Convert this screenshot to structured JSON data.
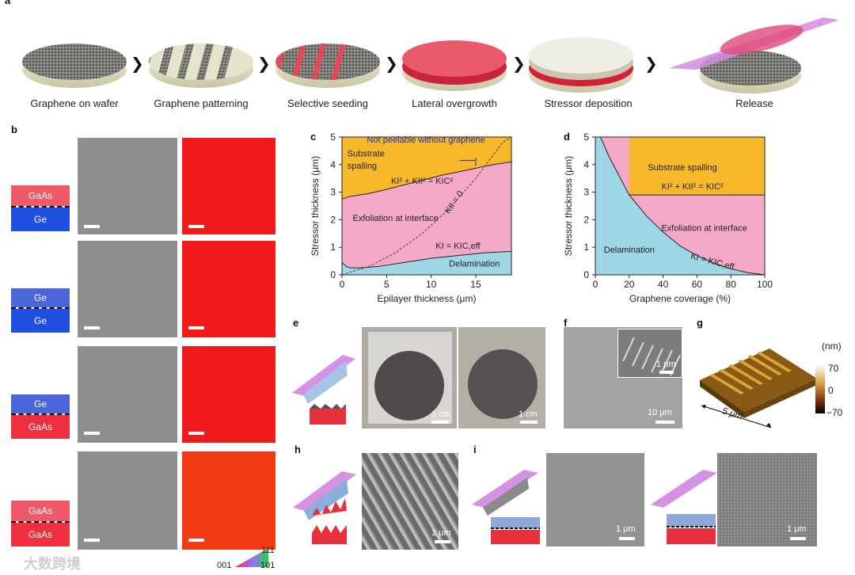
{
  "panel_a": {
    "label": "a",
    "steps": [
      "Graphene on wafer",
      "Graphene patterning",
      "Selective seeding",
      "Lateral overgrowth",
      "Stressor deposition",
      "Release"
    ],
    "arrow_glyph": "❯"
  },
  "panel_b": {
    "label": "b",
    "rows": [
      {
        "top": "GaAs",
        "bottom": "Ge",
        "top_color": "#ef4a5a",
        "bottom_color": "#1f4fe0"
      },
      {
        "top": "Ge",
        "bottom": "Ge",
        "top_color": "#4a66d8",
        "bottom_color": "#1f4fe0"
      },
      {
        "top": "Ge",
        "bottom": "GaAs",
        "top_color": "#4a66d8",
        "bottom_color": "#ef2f3f"
      },
      {
        "top": "GaAs",
        "bottom": "GaAs",
        "top_color": "#ef4a5a",
        "bottom_color": "#ef2f3f"
      }
    ],
    "colorbar": {
      "left": "001",
      "right": "101",
      "top": "111"
    }
  },
  "chart_data": [
    {
      "id": "c",
      "type": "area",
      "title": "",
      "xlabel": "Epilayer thickness (μm)",
      "ylabel": "Stressor thickness (μm)",
      "xlim": [
        0,
        19
      ],
      "ylim": [
        0,
        5
      ],
      "xticks": [
        0,
        5,
        10,
        15
      ],
      "yticks": [
        0,
        1,
        2,
        3,
        4,
        5
      ],
      "curves": {
        "upper_boundary": {
          "x": [
            0,
            1,
            2,
            3,
            5,
            8,
            11,
            14,
            17,
            19
          ],
          "y": [
            2.75,
            2.85,
            2.9,
            2.95,
            3.1,
            3.35,
            3.6,
            3.8,
            4.0,
            4.1
          ]
        },
        "lower_boundary": {
          "x": [
            0,
            0.5,
            1,
            2,
            4,
            7,
            10,
            13,
            16,
            19
          ],
          "y": [
            0.45,
            0.3,
            0.25,
            0.25,
            0.3,
            0.45,
            0.6,
            0.7,
            0.8,
            0.85
          ]
        },
        "KII_zero": {
          "x": [
            0,
            3,
            6,
            9,
            12,
            15,
            18,
            19
          ],
          "y": [
            0,
            0.3,
            0.8,
            1.5,
            2.4,
            3.5,
            4.8,
            5.0
          ]
        }
      },
      "regions": [
        "Substrate spalling",
        "Exfoliation at interface",
        "Delamination"
      ],
      "annotations": {
        "not_peelable": "Not peelable without graphene",
        "eq_upper": "KI² + KII² = KIC²",
        "eq_kii": "KII = 0",
        "eq_lower": "KI = KIC,eff"
      },
      "region_colors": {
        "spalling": "#f7b82a",
        "exfoliation": "#f6a9c6",
        "delamination": "#9ed6e6"
      }
    },
    {
      "id": "d",
      "type": "area",
      "title": "",
      "xlabel": "Graphene coverage (%)",
      "ylabel": "Stressor thickness (μm)",
      "xlim": [
        0,
        100
      ],
      "ylim": [
        0,
        5
      ],
      "xticks": [
        0,
        20,
        40,
        60,
        80,
        100
      ],
      "yticks": [
        0,
        1,
        2,
        3,
        4,
        5
      ],
      "curves": {
        "delam_boundary": {
          "x": [
            3,
            8,
            14,
            20,
            30,
            40,
            50,
            60,
            70,
            80,
            90,
            100
          ],
          "y": [
            5.0,
            4.3,
            3.6,
            2.9,
            2.15,
            1.55,
            1.05,
            0.7,
            0.42,
            0.22,
            0.08,
            0.0
          ]
        },
        "spalling_boundary": {
          "x": [
            20,
            100
          ],
          "y": [
            2.9,
            2.9
          ]
        }
      },
      "regions": [
        "Substrate spalling",
        "Exfoliation at interface",
        "Delamination"
      ],
      "annotations": {
        "eq_upper": "KI² + KII² = KIC²",
        "eq_lower": "KI = KIC,eff"
      },
      "region_colors": {
        "spalling": "#f7b82a",
        "exfoliation": "#f6a9c6",
        "delamination": "#9ed6e6"
      }
    }
  ],
  "panel_e": {
    "label": "e",
    "scale1": "1 cm",
    "scale2": "1 cm"
  },
  "panel_f": {
    "label": "f",
    "inset_scale": "1 μm",
    "scale": "10 μm"
  },
  "panel_g": {
    "label": "g",
    "unit": "(nm)",
    "max": "70",
    "mid": "0",
    "min": "−70",
    "width": "5 μm"
  },
  "panel_h": {
    "label": "h",
    "scale": "1 μm"
  },
  "panel_i": {
    "label": "i",
    "scale1": "1 μm",
    "scale2": "1 μm"
  },
  "watermark": "大数跨境"
}
